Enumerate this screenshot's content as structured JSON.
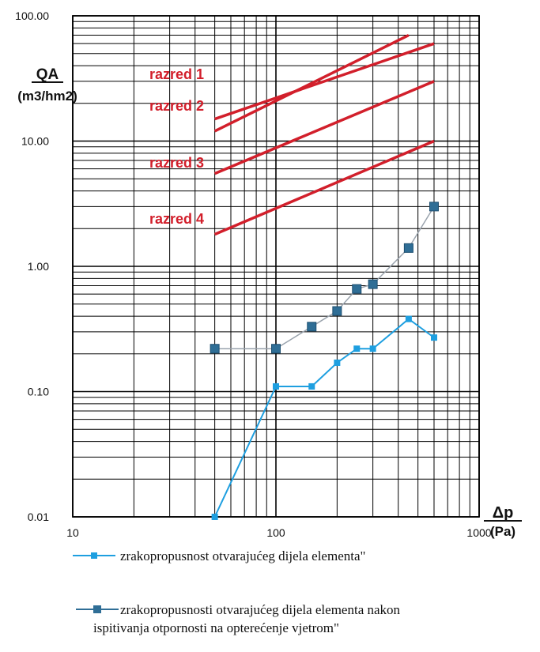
{
  "chart_data": {
    "type": "line",
    "x_scale": "log",
    "y_scale": "log",
    "xlim": [
      10,
      1000
    ],
    "ylim": [
      0.01,
      100
    ],
    "grid": true,
    "y_ticks": [
      "100.00",
      "10.00",
      "1.00",
      "0.10",
      "0.01"
    ],
    "x_ticks": [
      "10",
      "100",
      "1000"
    ],
    "ylabel": "QA",
    "ylabel_unit": "(m3/hm2)",
    "xlabel": "Δp",
    "xlabel_unit": "(Pa)",
    "classes": [
      {
        "name": "razred 1",
        "x": [
          50,
          450
        ],
        "y": [
          12,
          70
        ],
        "color": "#d21f2b"
      },
      {
        "name": "razred 2",
        "x": [
          50,
          600
        ],
        "y": [
          15,
          60
        ],
        "color": "#d21f2b"
      },
      {
        "name": "razred 3",
        "x": [
          50,
          600
        ],
        "y": [
          5.5,
          30
        ],
        "color": "#d21f2b"
      },
      {
        "name": "razred 4",
        "x": [
          50,
          600
        ],
        "y": [
          1.8,
          10
        ],
        "color": "#d21f2b"
      }
    ],
    "series": [
      {
        "name": "zrakopropusnost otvarajućeg dijela elementa\"",
        "color": "#1e9fe0",
        "marker": "#1e9fe0",
        "x": [
          50,
          100,
          150,
          200,
          250,
          300,
          450,
          600
        ],
        "y": [
          0.01,
          0.11,
          0.11,
          0.17,
          0.22,
          0.22,
          0.38,
          0.27
        ]
      },
      {
        "name": "zrakopropusnosti otvarajućeg dijela elementa nakon ispitivanja otpornosti na opterećenje vjetrom\"",
        "color": "#9aa3ad",
        "marker": "#2f6e96",
        "x": [
          50,
          100,
          150,
          200,
          250,
          300,
          450,
          600
        ],
        "y": [
          0.22,
          0.22,
          0.33,
          0.44,
          0.66,
          0.72,
          1.4,
          3.0
        ]
      }
    ]
  },
  "legend": {
    "item1": "zrakopropusnost otvarajućeg dijela elementa\"",
    "item2_line1": "zrakopropusnosti otvarajućeg dijela elementa nakon",
    "item2_line2": "ispitivanja otpornosti na opterećenje vjetrom\""
  }
}
